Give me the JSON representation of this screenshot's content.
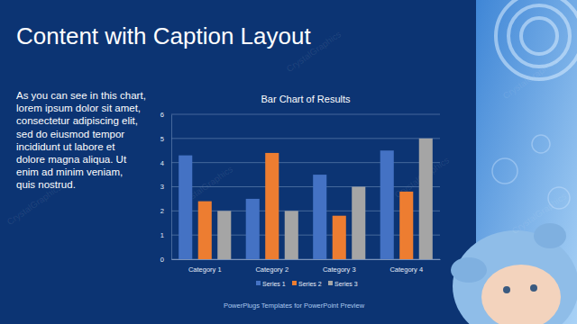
{
  "slide": {
    "title": "Content with Caption Layout",
    "caption": [
      "As you can see in this chart,",
      "lorem ipsum dolor sit amet,",
      "consectetur adipiscing elit,",
      "sed do eiusmod tempor",
      "incididunt ut labore et",
      "dolore magna aliqua. Ut",
      "enim ad minim veniam,",
      "quis nostrud."
    ],
    "footer": "PowerPlugs Templates for PowerPoint Preview",
    "watermark": "CrystalGraphics"
  },
  "chart_data": {
    "type": "bar",
    "title": "Bar Chart of Results",
    "categories": [
      "Category 1",
      "Category 2",
      "Category 3",
      "Category 4"
    ],
    "series": [
      {
        "name": "Series 1",
        "color": "#4472c4",
        "values": [
          4.3,
          2.5,
          3.5,
          4.5
        ]
      },
      {
        "name": "Series 2",
        "color": "#ed7d31",
        "values": [
          2.4,
          4.4,
          1.8,
          2.8
        ]
      },
      {
        "name": "Series 3",
        "color": "#a5a5a5",
        "values": [
          2,
          2,
          3,
          5
        ]
      }
    ],
    "ylim": [
      0,
      6
    ],
    "yticks": [
      0,
      1,
      2,
      3,
      4,
      5,
      6
    ],
    "grid": true,
    "legend": "bottom"
  }
}
